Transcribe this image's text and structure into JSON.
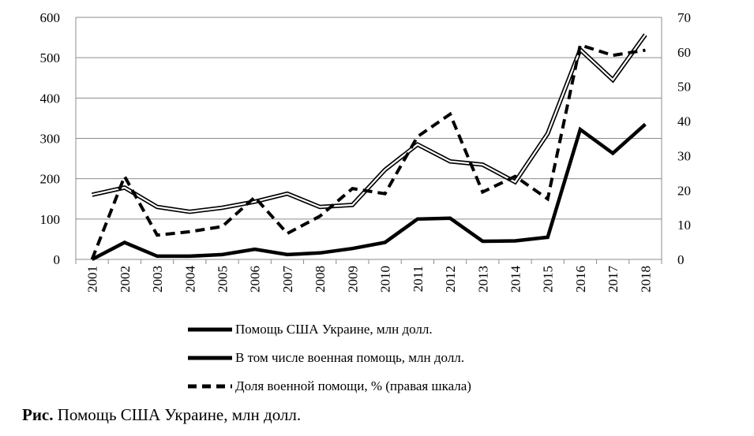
{
  "chart_data": {
    "type": "line",
    "title": "",
    "categories": [
      "2001",
      "2002",
      "2003",
      "2004",
      "2005",
      "2006",
      "2007",
      "2008",
      "2009",
      "2010",
      "2011",
      "2012",
      "2013",
      "2014",
      "2015",
      "2016",
      "2017",
      "2018"
    ],
    "y_left": {
      "min": 0,
      "max": 600,
      "ticks": [
        "0",
        "100",
        "200",
        "300",
        "400",
        "500",
        "600"
      ]
    },
    "y_right": {
      "min": 0,
      "max": 70,
      "ticks": [
        "0",
        "10",
        "20",
        "30",
        "40",
        "50",
        "60",
        "70"
      ]
    },
    "gridlines": "horizontal",
    "legend_position": "bottom",
    "series": [
      {
        "name": "Помощь США Украине, млн долл.",
        "axis": "left",
        "style": "double",
        "values": [
          160,
          178,
          130,
          118,
          128,
          143,
          163,
          130,
          135,
          222,
          285,
          243,
          235,
          192,
          312,
          520,
          445,
          557
        ]
      },
      {
        "name": "В том числе военная помощь, млн долл.",
        "axis": "left",
        "style": "solid",
        "values": [
          0,
          42,
          8,
          8,
          12,
          25,
          12,
          16,
          27,
          42,
          100,
          102,
          45,
          46,
          55,
          322,
          263,
          335
        ]
      },
      {
        "name": "Доля военной помощи, % (правая шкала)",
        "axis": "right",
        "style": "dashed",
        "values": [
          0,
          24,
          7,
          8,
          9.5,
          18,
          7.5,
          12.5,
          20.5,
          19,
          35.5,
          42,
          19.5,
          24,
          17.5,
          62,
          59,
          60.5
        ]
      }
    ]
  },
  "caption": {
    "prefix": "Рис.",
    "text": " Помощь США Украине, млн долл."
  }
}
